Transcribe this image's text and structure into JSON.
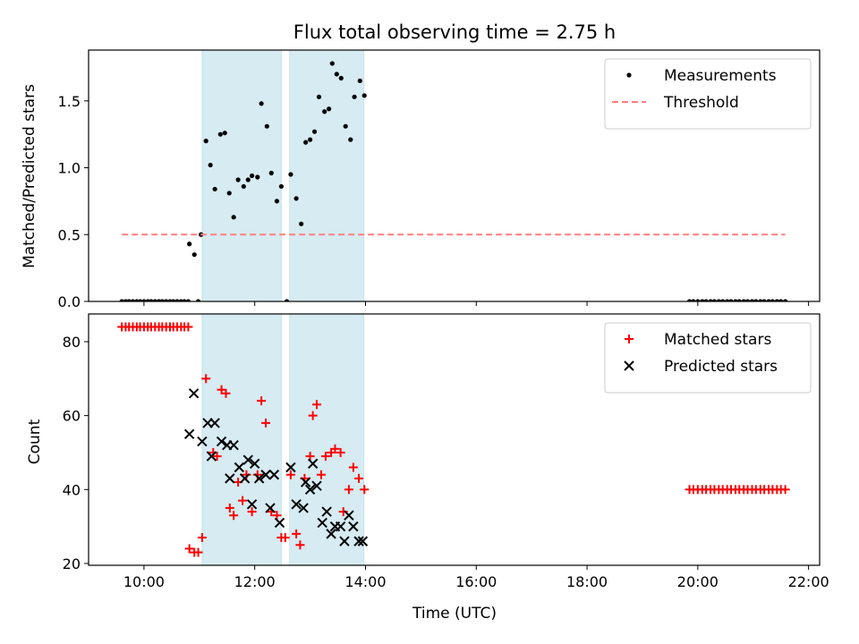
{
  "chart_data": [
    {
      "type": "scatter",
      "title": "Flux total observing time = 2.75 h",
      "xlabel": "",
      "ylabel": "Matched/Predicted stars",
      "xlim": [
        9.0,
        22.2
      ],
      "ylim": [
        0.0,
        1.88
      ],
      "yticks": [
        0.0,
        0.5,
        1.0,
        1.5
      ],
      "ytick_labels": [
        "0.0",
        "0.5",
        "1.0",
        "1.5"
      ],
      "xticks": [
        10,
        12,
        14,
        16,
        18,
        20,
        22
      ],
      "shaded_intervals": [
        [
          11.05,
          12.48
        ],
        [
          12.63,
          13.97
        ]
      ],
      "legend_position": "top-right",
      "series": [
        {
          "name": "Measurements",
          "kind": "scatter",
          "marker": "dot",
          "color": "#000000",
          "points": [
            [
              9.6,
              0
            ],
            [
              9.67,
              0
            ],
            [
              9.73,
              0
            ],
            [
              9.8,
              0
            ],
            [
              9.87,
              0
            ],
            [
              9.93,
              0
            ],
            [
              10.0,
              0
            ],
            [
              10.07,
              0
            ],
            [
              10.13,
              0
            ],
            [
              10.2,
              0
            ],
            [
              10.27,
              0
            ],
            [
              10.33,
              0
            ],
            [
              10.4,
              0
            ],
            [
              10.47,
              0
            ],
            [
              10.53,
              0
            ],
            [
              10.6,
              0
            ],
            [
              10.67,
              0
            ],
            [
              10.73,
              0
            ],
            [
              10.8,
              0
            ],
            [
              10.82,
              0.43
            ],
            [
              10.91,
              0.35
            ],
            [
              10.98,
              0
            ],
            [
              11.03,
              0.5
            ],
            [
              11.12,
              1.2
            ],
            [
              11.2,
              1.02
            ],
            [
              11.28,
              0.84
            ],
            [
              11.38,
              1.25
            ],
            [
              11.46,
              1.26
            ],
            [
              11.54,
              0.81
            ],
            [
              11.62,
              0.63
            ],
            [
              11.7,
              0.91
            ],
            [
              11.8,
              0.86
            ],
            [
              11.88,
              0.91
            ],
            [
              11.95,
              0.94
            ],
            [
              12.05,
              0.93
            ],
            [
              12.12,
              1.48
            ],
            [
              12.22,
              1.31
            ],
            [
              12.3,
              0.96
            ],
            [
              12.4,
              0.75
            ],
            [
              12.48,
              0.86
            ],
            [
              12.58,
              0.0
            ],
            [
              12.65,
              0.95
            ],
            [
              12.75,
              0.77
            ],
            [
              12.84,
              0.58
            ],
            [
              12.92,
              1.19
            ],
            [
              13.0,
              1.21
            ],
            [
              13.08,
              1.27
            ],
            [
              13.16,
              1.53
            ],
            [
              13.26,
              1.42
            ],
            [
              13.34,
              1.44
            ],
            [
              13.4,
              1.78
            ],
            [
              13.48,
              1.7
            ],
            [
              13.56,
              1.67
            ],
            [
              13.64,
              1.31
            ],
            [
              13.73,
              1.21
            ],
            [
              13.8,
              1.53
            ],
            [
              13.9,
              1.65
            ],
            [
              13.98,
              1.54
            ],
            [
              19.85,
              0
            ],
            [
              19.92,
              0
            ],
            [
              20.0,
              0
            ],
            [
              20.08,
              0
            ],
            [
              20.15,
              0
            ],
            [
              20.23,
              0
            ],
            [
              20.3,
              0
            ],
            [
              20.38,
              0
            ],
            [
              20.45,
              0
            ],
            [
              20.53,
              0
            ],
            [
              20.6,
              0
            ],
            [
              20.68,
              0
            ],
            [
              20.75,
              0
            ],
            [
              20.83,
              0
            ],
            [
              20.9,
              0
            ],
            [
              20.98,
              0
            ],
            [
              21.05,
              0
            ],
            [
              21.13,
              0
            ],
            [
              21.2,
              0
            ],
            [
              21.28,
              0
            ],
            [
              21.35,
              0
            ],
            [
              21.43,
              0
            ],
            [
              21.5,
              0
            ],
            [
              21.58,
              0
            ]
          ]
        },
        {
          "name": "Threshold",
          "kind": "line",
          "style": "dashed",
          "color": "#ff7f7f",
          "points": [
            [
              9.6,
              0.5
            ],
            [
              21.58,
              0.5
            ]
          ]
        }
      ]
    },
    {
      "type": "scatter",
      "title": "",
      "xlabel": "Time (UTC)",
      "ylabel": "Count",
      "xlim": [
        9.0,
        22.2
      ],
      "ylim": [
        19.5,
        87.5
      ],
      "yticks": [
        20,
        40,
        60,
        80
      ],
      "ytick_labels": [
        "20",
        "40",
        "60",
        "80"
      ],
      "xticks": [
        10,
        12,
        14,
        16,
        18,
        20,
        22
      ],
      "xtick_labels": [
        "10:00",
        "12:00",
        "14:00",
        "16:00",
        "18:00",
        "20:00",
        "22:00"
      ],
      "shaded_intervals": [
        [
          11.05,
          12.48
        ],
        [
          12.63,
          13.97
        ]
      ],
      "legend_position": "top-right",
      "series": [
        {
          "name": "Matched stars",
          "kind": "scatter",
          "marker": "plus",
          "color": "#ff0000",
          "points": [
            [
              9.6,
              84
            ],
            [
              9.67,
              84
            ],
            [
              9.73,
              84
            ],
            [
              9.8,
              84
            ],
            [
              9.87,
              84
            ],
            [
              9.93,
              84
            ],
            [
              10.0,
              84
            ],
            [
              10.07,
              84
            ],
            [
              10.13,
              84
            ],
            [
              10.2,
              84
            ],
            [
              10.27,
              84
            ],
            [
              10.33,
              84
            ],
            [
              10.4,
              84
            ],
            [
              10.47,
              84
            ],
            [
              10.53,
              84
            ],
            [
              10.6,
              84
            ],
            [
              10.67,
              84
            ],
            [
              10.73,
              84
            ],
            [
              10.8,
              84
            ],
            [
              10.82,
              24
            ],
            [
              10.91,
              23
            ],
            [
              10.98,
              23
            ],
            [
              11.05,
              27
            ],
            [
              11.12,
              70
            ],
            [
              11.25,
              50
            ],
            [
              11.32,
              49
            ],
            [
              11.4,
              67
            ],
            [
              11.48,
              66
            ],
            [
              11.55,
              35
            ],
            [
              11.62,
              33
            ],
            [
              11.7,
              42
            ],
            [
              11.78,
              37
            ],
            [
              11.85,
              44
            ],
            [
              11.95,
              34
            ],
            [
              12.05,
              44
            ],
            [
              12.12,
              64
            ],
            [
              12.2,
              58
            ],
            [
              12.3,
              34
            ],
            [
              12.4,
              33
            ],
            [
              12.48,
              27
            ],
            [
              12.55,
              27
            ],
            [
              12.65,
              44
            ],
            [
              12.75,
              28
            ],
            [
              12.82,
              25
            ],
            [
              12.9,
              43
            ],
            [
              13.0,
              49
            ],
            [
              13.05,
              60
            ],
            [
              13.12,
              63
            ],
            [
              13.2,
              44
            ],
            [
              13.28,
              49
            ],
            [
              13.38,
              50
            ],
            [
              13.45,
              51
            ],
            [
              13.55,
              50
            ],
            [
              13.6,
              34
            ],
            [
              13.7,
              40
            ],
            [
              13.78,
              46
            ],
            [
              13.88,
              43
            ],
            [
              13.98,
              40
            ],
            [
              19.85,
              40
            ],
            [
              19.92,
              40
            ],
            [
              20.0,
              40
            ],
            [
              20.08,
              40
            ],
            [
              20.15,
              40
            ],
            [
              20.23,
              40
            ],
            [
              20.3,
              40
            ],
            [
              20.38,
              40
            ],
            [
              20.45,
              40
            ],
            [
              20.53,
              40
            ],
            [
              20.6,
              40
            ],
            [
              20.68,
              40
            ],
            [
              20.75,
              40
            ],
            [
              20.83,
              40
            ],
            [
              20.9,
              40
            ],
            [
              20.98,
              40
            ],
            [
              21.05,
              40
            ],
            [
              21.13,
              40
            ],
            [
              21.2,
              40
            ],
            [
              21.28,
              40
            ],
            [
              21.35,
              40
            ],
            [
              21.43,
              40
            ],
            [
              21.5,
              40
            ],
            [
              21.58,
              40
            ]
          ]
        },
        {
          "name": "Predicted stars",
          "kind": "scatter",
          "marker": "x",
          "color": "#000000",
          "points": [
            [
              10.82,
              55
            ],
            [
              10.9,
              66
            ],
            [
              11.05,
              53
            ],
            [
              11.15,
              58
            ],
            [
              11.22,
              49
            ],
            [
              11.28,
              58
            ],
            [
              11.4,
              53
            ],
            [
              11.5,
              52
            ],
            [
              11.55,
              43
            ],
            [
              11.62,
              52
            ],
            [
              11.72,
              46
            ],
            [
              11.82,
              43
            ],
            [
              11.88,
              48
            ],
            [
              11.95,
              36
            ],
            [
              12.0,
              47
            ],
            [
              12.08,
              43
            ],
            [
              12.2,
              44
            ],
            [
              12.28,
              35
            ],
            [
              12.35,
              44
            ],
            [
              12.45,
              31
            ],
            [
              12.65,
              46
            ],
            [
              12.75,
              36
            ],
            [
              12.88,
              35
            ],
            [
              12.92,
              42
            ],
            [
              13.0,
              40
            ],
            [
              13.05,
              47
            ],
            [
              13.12,
              41
            ],
            [
              13.22,
              31
            ],
            [
              13.3,
              34
            ],
            [
              13.38,
              28
            ],
            [
              13.45,
              30
            ],
            [
              13.55,
              30
            ],
            [
              13.62,
              26
            ],
            [
              13.7,
              33
            ],
            [
              13.78,
              30
            ],
            [
              13.88,
              26
            ],
            [
              13.95,
              26
            ]
          ]
        }
      ]
    }
  ]
}
